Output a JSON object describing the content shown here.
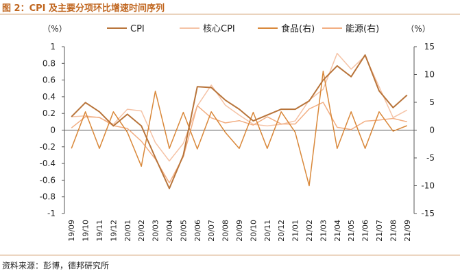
{
  "figure": {
    "title": "图 2：CPI 及主要分项环比增速时间序列",
    "source": "资料来源：彭博，德邦研究所"
  },
  "chart_data": {
    "type": "line",
    "x": [
      "19/09",
      "19/10",
      "19/11",
      "19/12",
      "20/01",
      "20/02",
      "20/03",
      "20/04",
      "20/05",
      "20/06",
      "20/07",
      "20/08",
      "20/09",
      "20/10",
      "20/11",
      "20/12",
      "21/01",
      "21/02",
      "21/03",
      "21/04",
      "21/05",
      "21/06",
      "21/07",
      "21/08",
      "21/09"
    ],
    "left_axis": {
      "unit_label": "（%）",
      "ylim": [
        -1,
        1
      ],
      "ticks": [
        "1",
        "0.8",
        "0.6",
        "0.4",
        "0.2",
        "0",
        "-0.2",
        "-0.4",
        "-0.6",
        "-0.8",
        "-1"
      ],
      "tick_values": [
        1,
        0.8,
        0.6,
        0.4,
        0.2,
        0,
        -0.2,
        -0.4,
        -0.6,
        -0.8,
        -1
      ]
    },
    "right_axis": {
      "unit_label": "（%）",
      "ylim": [
        -15,
        15
      ],
      "ticks": [
        "15",
        "10",
        "5",
        "0",
        "-5",
        "-10",
        "-15"
      ],
      "tick_values": [
        15,
        10,
        5,
        0,
        -5,
        -10,
        -15
      ]
    },
    "grid": false,
    "legend_position": "top",
    "series": [
      {
        "name": "CPI",
        "axis": "left",
        "color": "#b8743a",
        "width": 2.0,
        "values": [
          0.16,
          0.33,
          0.22,
          0.05,
          0.19,
          0.05,
          -0.33,
          -0.7,
          -0.3,
          0.52,
          0.51,
          0.36,
          0.25,
          0.11,
          0.18,
          0.25,
          0.25,
          0.35,
          0.6,
          0.77,
          0.64,
          0.9,
          0.47,
          0.27,
          0.42
        ]
      },
      {
        "name": "核心CPI",
        "axis": "left",
        "color": "#f5c3a6",
        "width": 1.5,
        "values": [
          0.16,
          0.17,
          0.15,
          0.07,
          0.25,
          0.23,
          -0.15,
          -0.37,
          -0.16,
          0.29,
          0.54,
          0.3,
          0.18,
          0.07,
          0.05,
          0.07,
          0.11,
          0.36,
          0.49,
          0.92,
          0.73,
          0.89,
          0.52,
          0.15,
          0.24
        ]
      },
      {
        "name": "食品(右)",
        "axis": "right",
        "color": "#d9883a",
        "width": 1.5,
        "values": [
          -3.3,
          3.3,
          -3.3,
          3.3,
          -0.4,
          -6.5,
          7.0,
          -3.3,
          3.2,
          -3.4,
          3.3,
          -0.4,
          -3.3,
          3.2,
          -3.3,
          3.3,
          -0.4,
          -10.0,
          10.6,
          -3.3,
          3.3,
          -3.3,
          3.3,
          -0.2,
          0.8
        ]
      },
      {
        "name": "能源(右)",
        "axis": "right",
        "color": "#f2ae82",
        "width": 1.5,
        "values": [
          0.4,
          2.4,
          2.3,
          0.8,
          0.3,
          -2.0,
          -5.2,
          -9.5,
          -4.8,
          4.4,
          2.2,
          1.3,
          1.7,
          0.9,
          2.4,
          1.1,
          1.1,
          3.8,
          5.0,
          0.5,
          0.1,
          1.6,
          1.8,
          2.1,
          1.5
        ]
      }
    ]
  }
}
